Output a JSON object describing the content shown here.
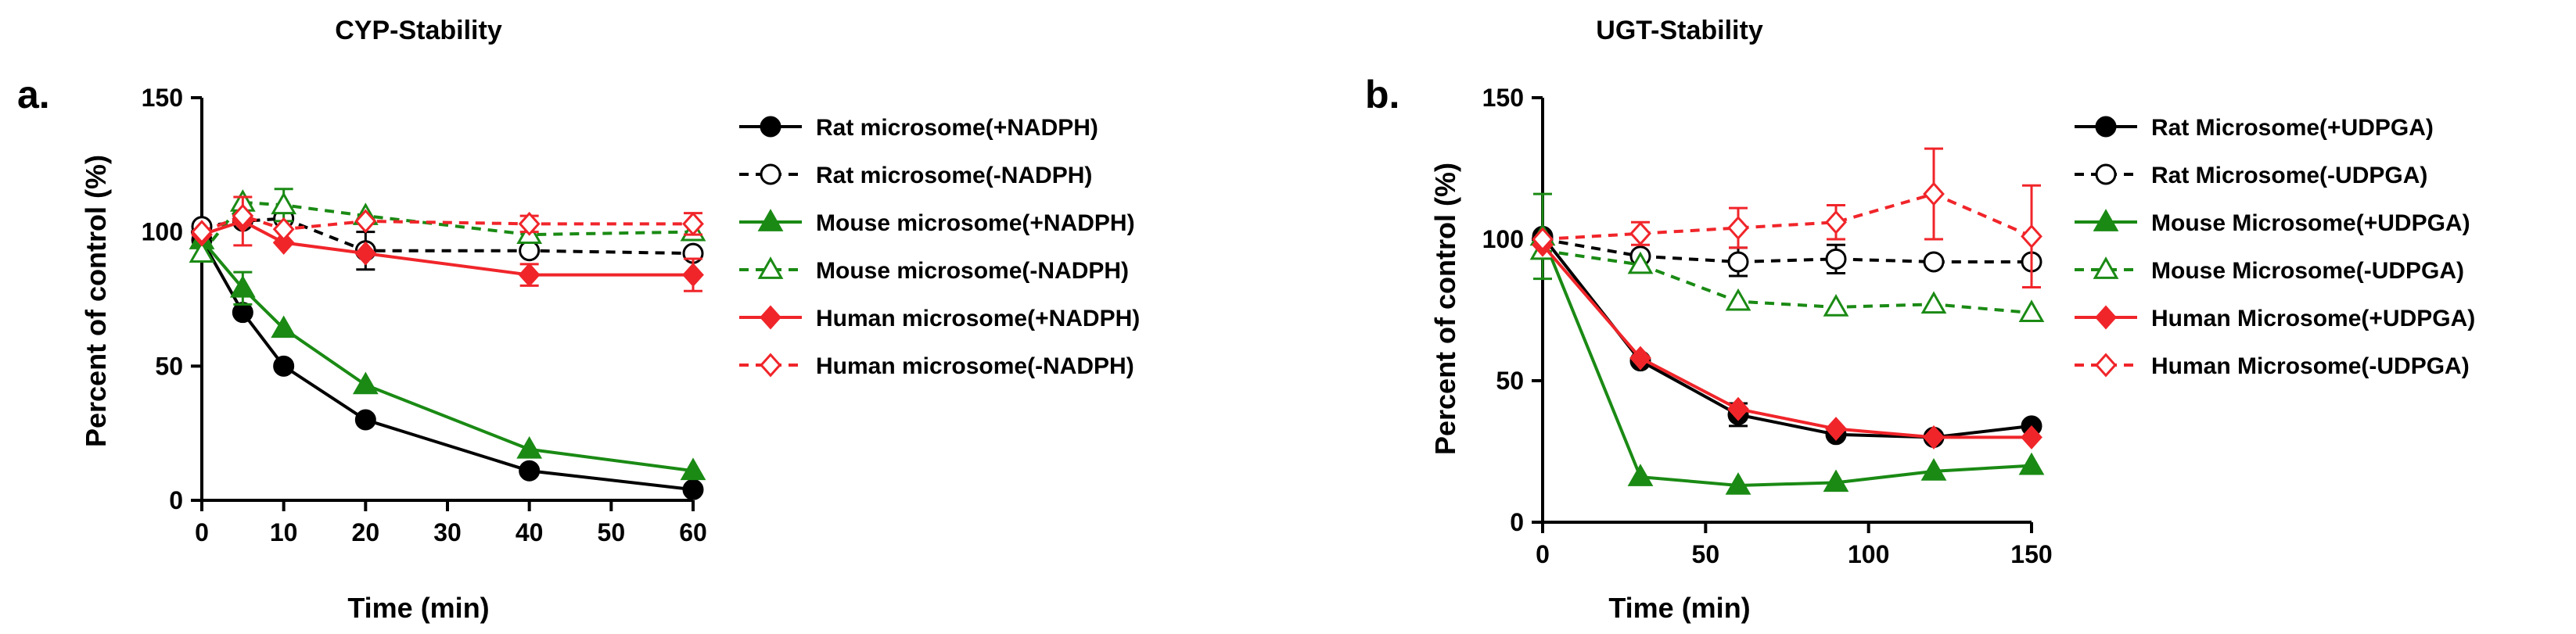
{
  "chart_data": [
    {
      "type": "line",
      "panel_label": "a.",
      "title": "CYP-Stability",
      "xlabel": "Time (min)",
      "ylabel": "Percent of control (%)",
      "xlim": [
        0,
        60
      ],
      "ylim": [
        0,
        150
      ],
      "xticks": [
        "0",
        "10",
        "20",
        "30",
        "40",
        "50",
        "60"
      ],
      "yticks": [
        "0",
        "50",
        "100",
        "150"
      ],
      "grid": false,
      "legend_position": "right",
      "x": [
        0,
        5,
        10,
        20,
        40,
        60
      ],
      "series": [
        {
          "name": "Rat microsome(+NADPH)",
          "color": "#000000",
          "marker": "circle",
          "filled": true,
          "dashed": false,
          "values": [
            97,
            70,
            50,
            30,
            11,
            4
          ],
          "errors": [
            0,
            0,
            0,
            0,
            0,
            0
          ]
        },
        {
          "name": "Rat microsome(-NADPH)",
          "color": "#000000",
          "marker": "circle",
          "filled": false,
          "dashed": true,
          "values": [
            102,
            104,
            105,
            93,
            93,
            92
          ],
          "errors": [
            0,
            0,
            0,
            7,
            0,
            0
          ]
        },
        {
          "name": "Mouse microsome(+NADPH)",
          "color": "#1a8a14",
          "marker": "triangle",
          "filled": true,
          "dashed": false,
          "values": [
            97,
            79,
            64,
            43,
            19,
            11
          ],
          "errors": [
            0,
            6,
            0,
            0,
            0,
            0
          ]
        },
        {
          "name": "Mouse microsome(-NADPH)",
          "color": "#1a8a14",
          "marker": "triangle",
          "filled": false,
          "dashed": true,
          "values": [
            92,
            111,
            110,
            106,
            99,
            100
          ],
          "errors": [
            0,
            0,
            6,
            0,
            0,
            0
          ]
        },
        {
          "name": "Human microsome(+NADPH)",
          "color": "#f0252a",
          "marker": "diamond",
          "filled": true,
          "dashed": false,
          "values": [
            99,
            104,
            96,
            92,
            84,
            84
          ],
          "errors": [
            0,
            9,
            0,
            0,
            4,
            6
          ]
        },
        {
          "name": "Human microsome(-NADPH)",
          "color": "#f0252a",
          "marker": "diamond",
          "filled": false,
          "dashed": true,
          "values": [
            100,
            106,
            101,
            104,
            103,
            103
          ],
          "errors": [
            0,
            0,
            0,
            0,
            3,
            4
          ]
        }
      ]
    },
    {
      "type": "line",
      "panel_label": "b.",
      "title": "UGT-Stability",
      "xlabel": "Time (min)",
      "ylabel": "Percent of control (%)",
      "xlim": [
        0,
        150
      ],
      "ylim": [
        0,
        150
      ],
      "xticks": [
        "0",
        "50",
        "100",
        "150"
      ],
      "yticks": [
        "0",
        "50",
        "100",
        "150"
      ],
      "grid": false,
      "legend_position": "right",
      "x": [
        0,
        30,
        60,
        90,
        120,
        150
      ],
      "series": [
        {
          "name": "Rat Microsome(+UDPGA)",
          "color": "#000000",
          "marker": "circle",
          "filled": true,
          "dashed": false,
          "values": [
            101,
            57,
            38,
            31,
            30,
            34
          ],
          "errors": [
            0,
            0,
            4,
            0,
            0,
            0
          ]
        },
        {
          "name": "Rat Microsome(-UDPGA)",
          "color": "#000000",
          "marker": "circle",
          "filled": false,
          "dashed": true,
          "values": [
            100,
            94,
            92,
            93,
            92,
            92
          ],
          "errors": [
            0,
            0,
            5,
            5,
            0,
            0
          ]
        },
        {
          "name": "Mouse Microsome(+UDPGA)",
          "color": "#1a8a14",
          "marker": "triangle",
          "filled": true,
          "dashed": false,
          "values": [
            101,
            16,
            13,
            14,
            18,
            20
          ],
          "errors": [
            15,
            0,
            0,
            0,
            0,
            0
          ]
        },
        {
          "name": "Mouse Microsome(-UDPGA)",
          "color": "#1a8a14",
          "marker": "triangle",
          "filled": false,
          "dashed": true,
          "values": [
            96,
            91,
            78,
            76,
            77,
            74
          ],
          "errors": [
            0,
            0,
            0,
            0,
            0,
            0
          ]
        },
        {
          "name": "Human Microsome(+UDPGA)",
          "color": "#f0252a",
          "marker": "diamond",
          "filled": true,
          "dashed": false,
          "values": [
            98,
            58,
            40,
            33,
            30,
            30
          ],
          "errors": [
            0,
            0,
            0,
            0,
            0,
            0
          ]
        },
        {
          "name": "Human Microsome(-UDPGA)",
          "color": "#f0252a",
          "marker": "diamond",
          "filled": false,
          "dashed": true,
          "values": [
            100,
            102,
            104,
            106,
            116,
            101
          ],
          "errors": [
            0,
            4,
            7,
            6,
            16,
            18
          ]
        }
      ]
    }
  ]
}
